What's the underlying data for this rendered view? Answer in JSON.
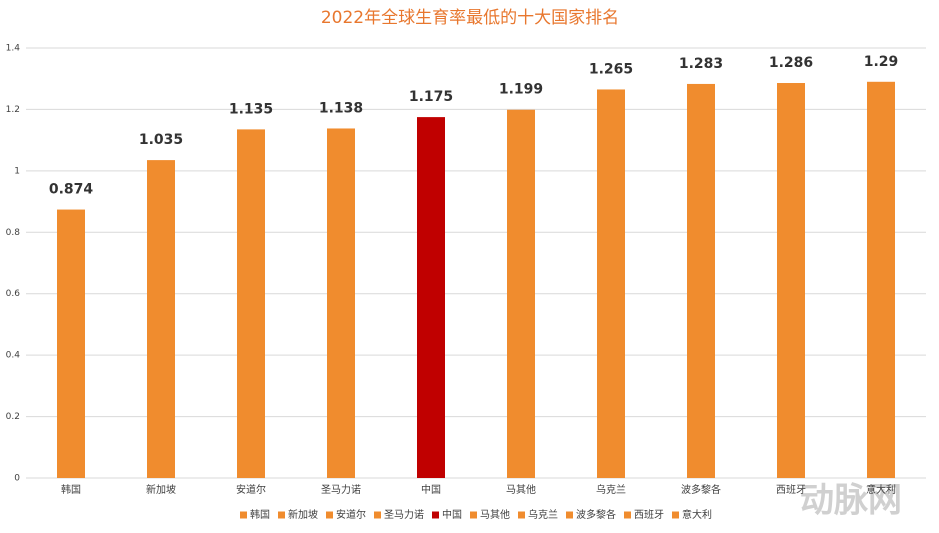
{
  "chart_data": {
    "type": "bar",
    "title": "2022年全球生育率最低的十大国家排名",
    "categories": [
      "韩国",
      "新加坡",
      "安道尔",
      "圣马力诺",
      "中国",
      "马其他",
      "乌克兰",
      "波多黎各",
      "西班牙",
      "意大利"
    ],
    "values": [
      0.874,
      1.035,
      1.135,
      1.138,
      1.175,
      1.199,
      1.265,
      1.283,
      1.286,
      1.29
    ],
    "colors": [
      "#f08c2e",
      "#f08c2e",
      "#f08c2e",
      "#f08c2e",
      "#c00000",
      "#f08c2e",
      "#f08c2e",
      "#f08c2e",
      "#f08c2e",
      "#f08c2e"
    ],
    "ylim": [
      0,
      1.4
    ],
    "yticks": [
      0,
      0.2,
      0.4,
      0.6,
      0.8,
      1,
      1.2,
      1.4
    ],
    "grid": true,
    "legend": "bottom",
    "watermark": "动脉网"
  }
}
